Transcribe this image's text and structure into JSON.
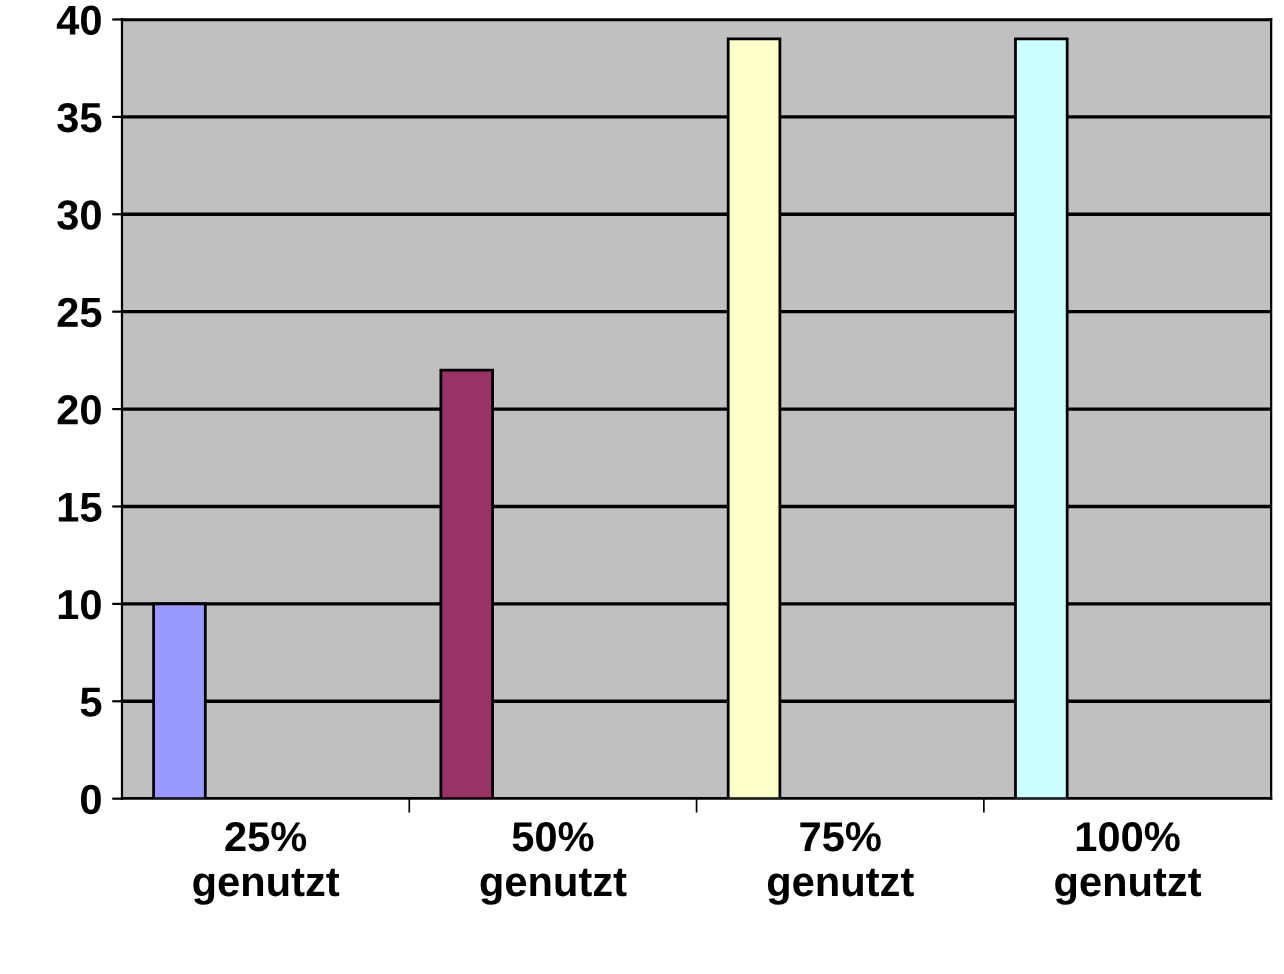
{
  "chart_data": {
    "type": "bar",
    "categories": [
      "25%\ngenutzt",
      "50%\ngenutzt",
      "75%\ngenutzt",
      "100%\ngenutzt"
    ],
    "values": [
      10,
      22,
      39,
      39
    ],
    "colors": [
      "#9999ff",
      "#993366",
      "#ffffcc",
      "#ccffff"
    ],
    "ylim": [
      0,
      40
    ],
    "yticks": [
      0,
      5,
      10,
      15,
      20,
      25,
      30,
      35,
      40
    ],
    "grid": "y",
    "legend": false
  }
}
